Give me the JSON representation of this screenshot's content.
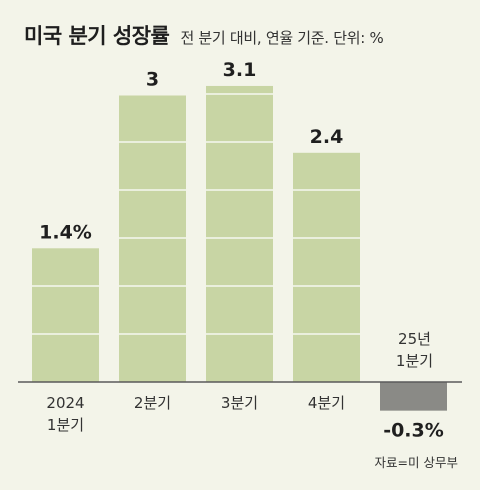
{
  "header": {
    "title": "미국 분기 성장률",
    "subtitle": "전 분기 대비, 연율 기준. 단위: %"
  },
  "source": "자료=미 상무부",
  "colors": {
    "positive_bar": "#c8d5a4",
    "negative_bar": "#8a8a86",
    "baseline": "#5a5a5a",
    "grid_line": "#ffffff",
    "background": "#f3f4e9"
  },
  "chart_data": {
    "type": "bar",
    "title": "미국 분기 성장률",
    "subtitle": "전 분기 대비, 연율 기준. 단위: %",
    "categories": [
      [
        "2024",
        "1분기"
      ],
      [
        "2분기"
      ],
      [
        "3분기"
      ],
      [
        "4분기"
      ],
      [
        "25년",
        "1분기"
      ]
    ],
    "values": [
      1.4,
      3,
      3.1,
      2.4,
      -0.3
    ],
    "data_labels": [
      "1.4%",
      "3",
      "3.1",
      "2.4",
      "-0.3%"
    ],
    "ylim": [
      -0.3,
      3.1
    ],
    "grid": true
  }
}
